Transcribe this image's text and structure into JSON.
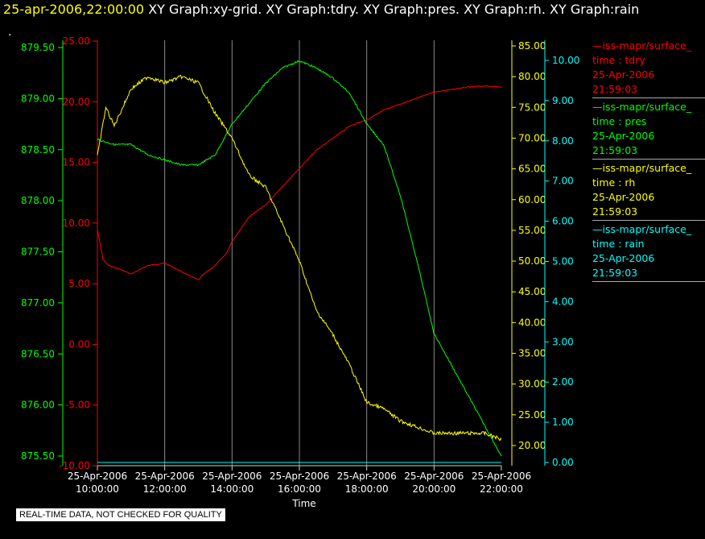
{
  "header": {
    "timestamp": "25-apr-2006,22:00:00",
    "graph_titles": "XY Graph:xy-grid.  XY Graph:tdry.  XY Graph:pres.  XY Graph:rh.  XY Graph:rain"
  },
  "corner_mark": ".",
  "footer": "REAL-TIME DATA, NOT CHECKED FOR QUALITY",
  "legend": [
    {
      "source": "—iss-mapr/surface_",
      "label": "time : tdry",
      "date": "25-Apr-2006",
      "time": "21:59:03",
      "color": "#ff0000"
    },
    {
      "source": "—iss-mapr/surface_",
      "label": "time : pres",
      "date": "25-Apr-2006",
      "time": "21:59:03",
      "color": "#00ff00"
    },
    {
      "source": "—iss-mapr/surface_",
      "label": "time : rh",
      "date": "25-Apr-2006",
      "time": "21:59:03",
      "color": "#ffff00"
    },
    {
      "source": "—iss-mapr/surface_",
      "label": "time : rain",
      "date": "25-Apr-2006",
      "time": "21:59:03",
      "color": "#00ffff"
    }
  ],
  "chart_data": {
    "type": "line",
    "xlabel": "Time",
    "xticks": [
      {
        "date": "25-Apr-2006",
        "time": "10:00:00"
      },
      {
        "date": "25-Apr-2006",
        "time": "12:00:00"
      },
      {
        "date": "25-Apr-2006",
        "time": "14:00:00"
      },
      {
        "date": "25-Apr-2006",
        "time": "16:00:00"
      },
      {
        "date": "25-Apr-2006",
        "time": "18:00:00"
      },
      {
        "date": "25-Apr-2006",
        "time": "20:00:00"
      },
      {
        "date": "25-Apr-2006",
        "time": "22:00:00"
      }
    ],
    "xlim": [
      "25-Apr-2006 10:00:00",
      "25-Apr-2006 22:00:00"
    ],
    "grid": true,
    "axes": {
      "pres": {
        "color": "#00ff00",
        "ylim": [
          875.5,
          879.5
        ],
        "ticks": [
          "875.50",
          "876.00",
          "876.50",
          "877.00",
          "877.50",
          "878.00",
          "878.50",
          "879.00",
          "879.50"
        ]
      },
      "tdry": {
        "color": "#ff0000",
        "ylim": [
          -10,
          25
        ],
        "ticks": [
          "-10.00",
          "-5.00",
          "0.00",
          "5.00",
          "10.00",
          "15.00",
          "20.00",
          "25.00"
        ]
      },
      "rh": {
        "color": "#ffff00",
        "ylim": [
          17.5,
          85
        ],
        "ticks": [
          "20.00",
          "25.00",
          "30.00",
          "35.00",
          "40.00",
          "45.00",
          "50.00",
          "55.00",
          "60.00",
          "65.00",
          "70.00",
          "75.00",
          "80.00",
          "85.00"
        ]
      },
      "rain": {
        "color": "#00ffff",
        "ylim": [
          0,
          10
        ],
        "ticks": [
          "0.00",
          "1.00",
          "2.00",
          "3.00",
          "4.00",
          "5.00",
          "6.00",
          "7.00",
          "8.00",
          "9.00",
          "10.00"
        ]
      }
    },
    "series": [
      {
        "name": "tdry",
        "axis": "tdry",
        "color": "#ff0000",
        "x": [
          "25-Apr-2006 10:00:00",
          "25-Apr-2006 10:10:00",
          "25-Apr-2006 10:20:00",
          "25-Apr-2006 10:40:00",
          "25-Apr-2006 11:00:00",
          "25-Apr-2006 11:30:00",
          "25-Apr-2006 12:00:00",
          "25-Apr-2006 12:30:00",
          "25-Apr-2006 13:00:00",
          "25-Apr-2006 13:10:00",
          "25-Apr-2006 13:30:00",
          "25-Apr-2006 13:50:00",
          "25-Apr-2006 14:00:00",
          "25-Apr-2006 14:30:00",
          "25-Apr-2006 15:00:00",
          "25-Apr-2006 15:30:00",
          "25-Apr-2006 16:00:00",
          "25-Apr-2006 16:30:00",
          "25-Apr-2006 17:00:00",
          "25-Apr-2006 17:30:00",
          "25-Apr-2006 18:00:00",
          "25-Apr-2006 18:30:00",
          "25-Apr-2006 19:00:00",
          "25-Apr-2006 19:30:00",
          "25-Apr-2006 20:00:00",
          "25-Apr-2006 20:30:00",
          "25-Apr-2006 21:00:00",
          "25-Apr-2006 21:30:00",
          "25-Apr-2006 22:00:00"
        ],
        "y": [
          9.5,
          7,
          6.5,
          6.2,
          5.8,
          6.5,
          6.7,
          6.0,
          5.3,
          5.8,
          6.5,
          7.5,
          8.5,
          10.5,
          11.5,
          13.0,
          14.5,
          16.0,
          17.0,
          18.0,
          18.5,
          19.3,
          19.8,
          20.3,
          20.8,
          21.0,
          21.2,
          21.3,
          21.2
        ]
      },
      {
        "name": "pres",
        "axis": "pres",
        "color": "#00ff00",
        "x": [
          "25-Apr-2006 10:00:00",
          "25-Apr-2006 10:30:00",
          "25-Apr-2006 11:00:00",
          "25-Apr-2006 11:30:00",
          "25-Apr-2006 12:00:00",
          "25-Apr-2006 12:30:00",
          "25-Apr-2006 13:00:00",
          "25-Apr-2006 13:30:00",
          "25-Apr-2006 14:00:00",
          "25-Apr-2006 14:30:00",
          "25-Apr-2006 15:00:00",
          "25-Apr-2006 15:30:00",
          "25-Apr-2006 16:00:00",
          "25-Apr-2006 16:30:00",
          "25-Apr-2006 17:00:00",
          "25-Apr-2006 17:30:00",
          "25-Apr-2006 18:00:00",
          "25-Apr-2006 18:30:00",
          "25-Apr-2006 19:00:00",
          "25-Apr-2006 19:30:00",
          "25-Apr-2006 20:00:00",
          "25-Apr-2006 20:30:00",
          "25-Apr-2006 21:00:00",
          "25-Apr-2006 21:30:00",
          "25-Apr-2006 22:00:00"
        ],
        "y": [
          878.6,
          878.55,
          878.55,
          878.45,
          878.4,
          878.35,
          878.35,
          878.45,
          878.75,
          878.95,
          879.15,
          879.3,
          879.37,
          879.3,
          879.2,
          879.05,
          878.75,
          878.55,
          878.05,
          877.4,
          876.7,
          876.4,
          876.1,
          875.8,
          875.5
        ]
      },
      {
        "name": "rh",
        "axis": "rh",
        "color": "#ffff00",
        "x": [
          "25-Apr-2006 10:00:00",
          "25-Apr-2006 10:15:00",
          "25-Apr-2006 10:30:00",
          "25-Apr-2006 11:00:00",
          "25-Apr-2006 11:30:00",
          "25-Apr-2006 12:00:00",
          "25-Apr-2006 12:30:00",
          "25-Apr-2006 13:00:00",
          "25-Apr-2006 13:30:00",
          "25-Apr-2006 14:00:00",
          "25-Apr-2006 14:30:00",
          "25-Apr-2006 15:00:00",
          "25-Apr-2006 15:30:00",
          "25-Apr-2006 16:00:00",
          "25-Apr-2006 16:30:00",
          "25-Apr-2006 17:00:00",
          "25-Apr-2006 17:30:00",
          "25-Apr-2006 18:00:00",
          "25-Apr-2006 18:30:00",
          "25-Apr-2006 19:00:00",
          "25-Apr-2006 19:30:00",
          "25-Apr-2006 20:00:00",
          "25-Apr-2006 20:30:00",
          "25-Apr-2006 21:00:00",
          "25-Apr-2006 21:30:00",
          "25-Apr-2006 22:00:00"
        ],
        "y": [
          67,
          75,
          72,
          78,
          80,
          79,
          80,
          79,
          74,
          70,
          64,
          62,
          56,
          50,
          42,
          38,
          33,
          27,
          26,
          24,
          23,
          22,
          22,
          22,
          22,
          21
        ]
      },
      {
        "name": "rain",
        "axis": "rain",
        "color": "#00ffff",
        "x": [
          "25-Apr-2006 10:00:00",
          "25-Apr-2006 22:00:00"
        ],
        "y": [
          0,
          0
        ]
      }
    ]
  }
}
